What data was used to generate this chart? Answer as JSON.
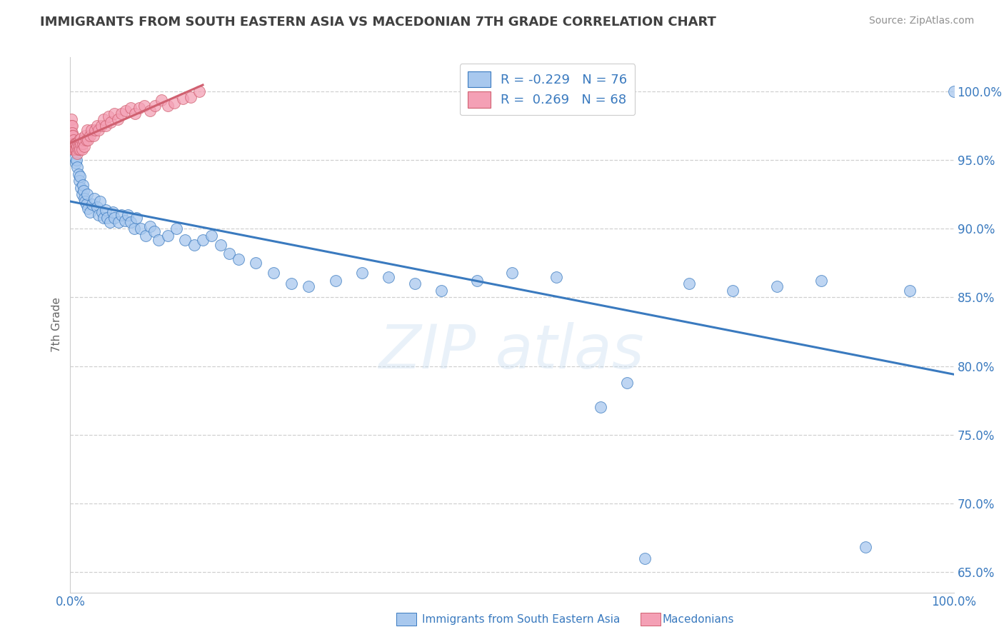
{
  "title": "IMMIGRANTS FROM SOUTH EASTERN ASIA VS MACEDONIAN 7TH GRADE CORRELATION CHART",
  "source": "Source: ZipAtlas.com",
  "xlabel_bottom": "Immigrants from South Eastern Asia",
  "xlabel_macedonians": "Macedonians",
  "ylabel": "7th Grade",
  "legend_blue_r": "R = -0.229",
  "legend_blue_n": "N = 76",
  "legend_pink_r": "R =  0.269",
  "legend_pink_n": "N = 68",
  "blue_color": "#a8c8ee",
  "pink_color": "#f4a0b5",
  "trend_blue": "#3a7abf",
  "trend_pink": "#d06070",
  "legend_text_color": "#3a7abf",
  "title_color": "#404040",
  "source_color": "#909090",
  "grid_color": "#d0d0d0",
  "background": "#ffffff",
  "blue_x": [
    0.001,
    0.002,
    0.003,
    0.004,
    0.005,
    0.006,
    0.007,
    0.008,
    0.009,
    0.01,
    0.011,
    0.012,
    0.013,
    0.014,
    0.015,
    0.016,
    0.017,
    0.018,
    0.019,
    0.02,
    0.022,
    0.025,
    0.027,
    0.03,
    0.032,
    0.034,
    0.036,
    0.038,
    0.04,
    0.042,
    0.045,
    0.048,
    0.05,
    0.055,
    0.058,
    0.062,
    0.065,
    0.068,
    0.072,
    0.075,
    0.08,
    0.085,
    0.09,
    0.095,
    0.1,
    0.11,
    0.12,
    0.13,
    0.14,
    0.15,
    0.16,
    0.17,
    0.18,
    0.19,
    0.21,
    0.23,
    0.25,
    0.27,
    0.3,
    0.33,
    0.36,
    0.39,
    0.42,
    0.46,
    0.5,
    0.55,
    0.6,
    0.63,
    0.65,
    0.7,
    0.75,
    0.8,
    0.85,
    0.9,
    0.95,
    1.0
  ],
  "blue_y": [
    0.97,
    0.965,
    0.96,
    0.958,
    0.952,
    0.948,
    0.95,
    0.945,
    0.94,
    0.935,
    0.938,
    0.93,
    0.925,
    0.932,
    0.928,
    0.922,
    0.92,
    0.918,
    0.925,
    0.915,
    0.912,
    0.918,
    0.922,
    0.916,
    0.91,
    0.92,
    0.912,
    0.908,
    0.914,
    0.908,
    0.905,
    0.912,
    0.908,
    0.905,
    0.91,
    0.906,
    0.91,
    0.905,
    0.9,
    0.908,
    0.9,
    0.895,
    0.902,
    0.898,
    0.892,
    0.895,
    0.9,
    0.892,
    0.888,
    0.892,
    0.895,
    0.888,
    0.882,
    0.878,
    0.875,
    0.868,
    0.86,
    0.858,
    0.862,
    0.868,
    0.865,
    0.86,
    0.855,
    0.862,
    0.868,
    0.865,
    0.77,
    0.788,
    0.66,
    0.86,
    0.855,
    0.858,
    0.862,
    0.668,
    0.855,
    1.0
  ],
  "pink_x": [
    0.001,
    0.001,
    0.001,
    0.001,
    0.001,
    0.002,
    0.002,
    0.002,
    0.002,
    0.002,
    0.003,
    0.003,
    0.003,
    0.003,
    0.003,
    0.004,
    0.004,
    0.004,
    0.005,
    0.005,
    0.006,
    0.006,
    0.007,
    0.007,
    0.008,
    0.008,
    0.009,
    0.009,
    0.01,
    0.01,
    0.011,
    0.012,
    0.012,
    0.013,
    0.014,
    0.015,
    0.016,
    0.017,
    0.018,
    0.019,
    0.02,
    0.022,
    0.024,
    0.026,
    0.028,
    0.03,
    0.032,
    0.035,
    0.038,
    0.04,
    0.043,
    0.046,
    0.05,
    0.054,
    0.058,
    0.063,
    0.068,
    0.073,
    0.078,
    0.084,
    0.09,
    0.096,
    0.103,
    0.11,
    0.118,
    0.127,
    0.136,
    0.146
  ],
  "pink_y": [
    0.98,
    0.975,
    0.97,
    0.965,
    0.96,
    0.975,
    0.97,
    0.965,
    0.96,
    0.968,
    0.965,
    0.96,
    0.958,
    0.968,
    0.962,
    0.96,
    0.958,
    0.965,
    0.962,
    0.958,
    0.958,
    0.962,
    0.958,
    0.962,
    0.955,
    0.96,
    0.958,
    0.962,
    0.96,
    0.965,
    0.958,
    0.962,
    0.966,
    0.958,
    0.962,
    0.965,
    0.96,
    0.968,
    0.965,
    0.972,
    0.965,
    0.968,
    0.972,
    0.968,
    0.972,
    0.975,
    0.972,
    0.975,
    0.98,
    0.975,
    0.982,
    0.978,
    0.984,
    0.98,
    0.984,
    0.986,
    0.988,
    0.984,
    0.988,
    0.99,
    0.986,
    0.99,
    0.994,
    0.99,
    0.992,
    0.995,
    0.996,
    1.0
  ],
  "xlim": [
    0.0,
    1.0
  ],
  "ylim": [
    0.635,
    1.025
  ],
  "yticks": [
    0.65,
    0.7,
    0.75,
    0.8,
    0.85,
    0.9,
    0.95,
    1.0
  ],
  "ytick_labels": [
    "65.0%",
    "70.0%",
    "75.0%",
    "80.0%",
    "85.0%",
    "90.0%",
    "95.0%",
    "100.0%"
  ],
  "xticks": [
    0.0,
    0.1,
    0.2,
    0.3,
    0.4,
    0.5,
    0.6,
    0.7,
    0.8,
    0.9,
    1.0
  ],
  "xtick_labels": [
    "0.0%",
    "",
    "",
    "",
    "",
    "",
    "",
    "",
    "",
    "",
    "100.0%"
  ]
}
